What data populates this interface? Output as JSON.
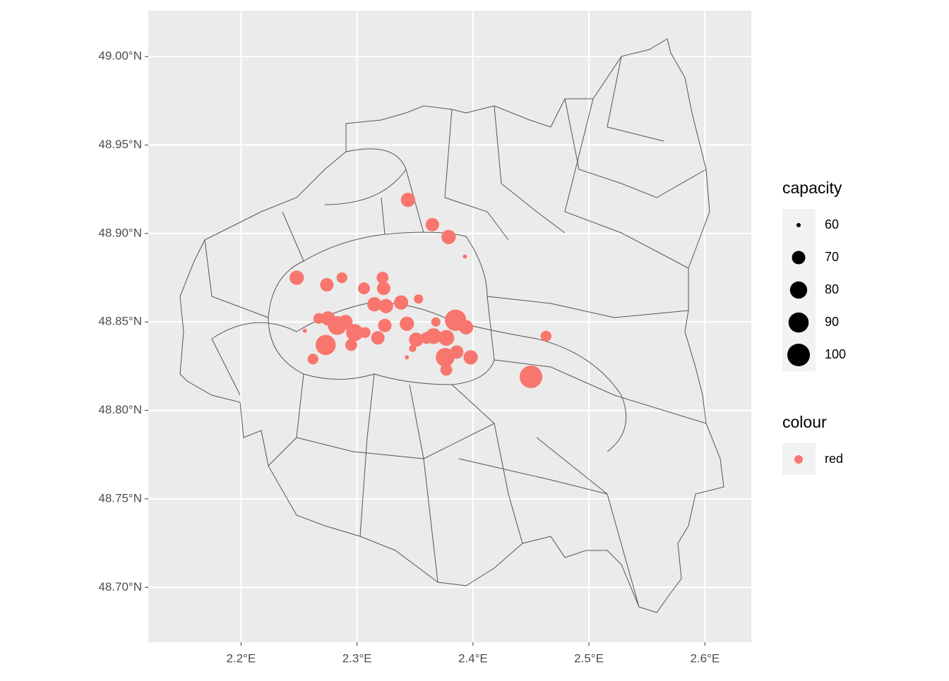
{
  "chart_data": {
    "type": "scatter",
    "x": [
      2.344,
      2.365,
      2.379,
      2.393,
      2.248,
      2.287,
      2.274,
      2.322,
      2.306,
      2.323,
      2.353,
      2.338,
      2.315,
      2.325,
      2.267,
      2.275,
      2.255,
      2.283,
      2.29,
      2.324,
      2.343,
      2.298,
      2.307,
      2.318,
      2.295,
      2.273,
      2.262,
      2.351,
      2.368,
      2.366,
      2.377,
      2.385,
      2.394,
      2.376,
      2.386,
      2.377,
      2.398,
      2.348,
      2.343,
      2.463,
      2.45,
      2.36
    ],
    "y": [
      48.919,
      48.905,
      48.898,
      48.887,
      48.875,
      48.875,
      48.871,
      48.875,
      48.869,
      48.869,
      48.863,
      48.861,
      48.86,
      48.859,
      48.852,
      48.852,
      48.845,
      48.848,
      48.85,
      48.848,
      48.849,
      48.844,
      48.844,
      48.841,
      48.837,
      48.837,
      48.829,
      48.84,
      48.85,
      48.842,
      48.841,
      48.851,
      48.847,
      48.83,
      48.833,
      48.823,
      48.83,
      48.835,
      48.83,
      48.842,
      48.819,
      48.841
    ],
    "sizes": [
      72,
      70,
      72,
      60,
      72,
      65,
      70,
      67,
      67,
      70,
      63,
      72,
      72,
      72,
      65,
      72,
      60,
      85,
      72,
      70,
      72,
      80,
      65,
      70,
      67,
      90,
      65,
      72,
      63,
      76,
      76,
      95,
      72,
      85,
      70,
      67,
      72,
      61,
      60,
      65,
      100,
      67
    ],
    "color": "#F8766D",
    "xlim": [
      2.12,
      2.64
    ],
    "ylim": [
      48.669,
      49.026
    ],
    "xticks": [
      {
        "value": 2.2,
        "label": "2.2°E"
      },
      {
        "value": 2.3,
        "label": "2.3°E"
      },
      {
        "value": 2.4,
        "label": "2.4°E"
      },
      {
        "value": 2.5,
        "label": "2.5°E"
      },
      {
        "value": 2.6,
        "label": "2.6°E"
      }
    ],
    "yticks": [
      {
        "value": 48.7,
        "label": "48.70°N"
      },
      {
        "value": 48.75,
        "label": "48.75°N"
      },
      {
        "value": 48.8,
        "label": "48.80°N"
      },
      {
        "value": 48.85,
        "label": "48.85°N"
      },
      {
        "value": 48.9,
        "label": "48.90°N"
      },
      {
        "value": 48.95,
        "label": "48.95°N"
      },
      {
        "value": 49.0,
        "label": "49.00°N"
      }
    ],
    "grid": true,
    "size_legend": {
      "title": "capacity",
      "breaks": [
        60,
        70,
        80,
        90,
        100
      ]
    },
    "color_legend": {
      "title": "colour",
      "labels": [
        "red"
      ]
    }
  }
}
